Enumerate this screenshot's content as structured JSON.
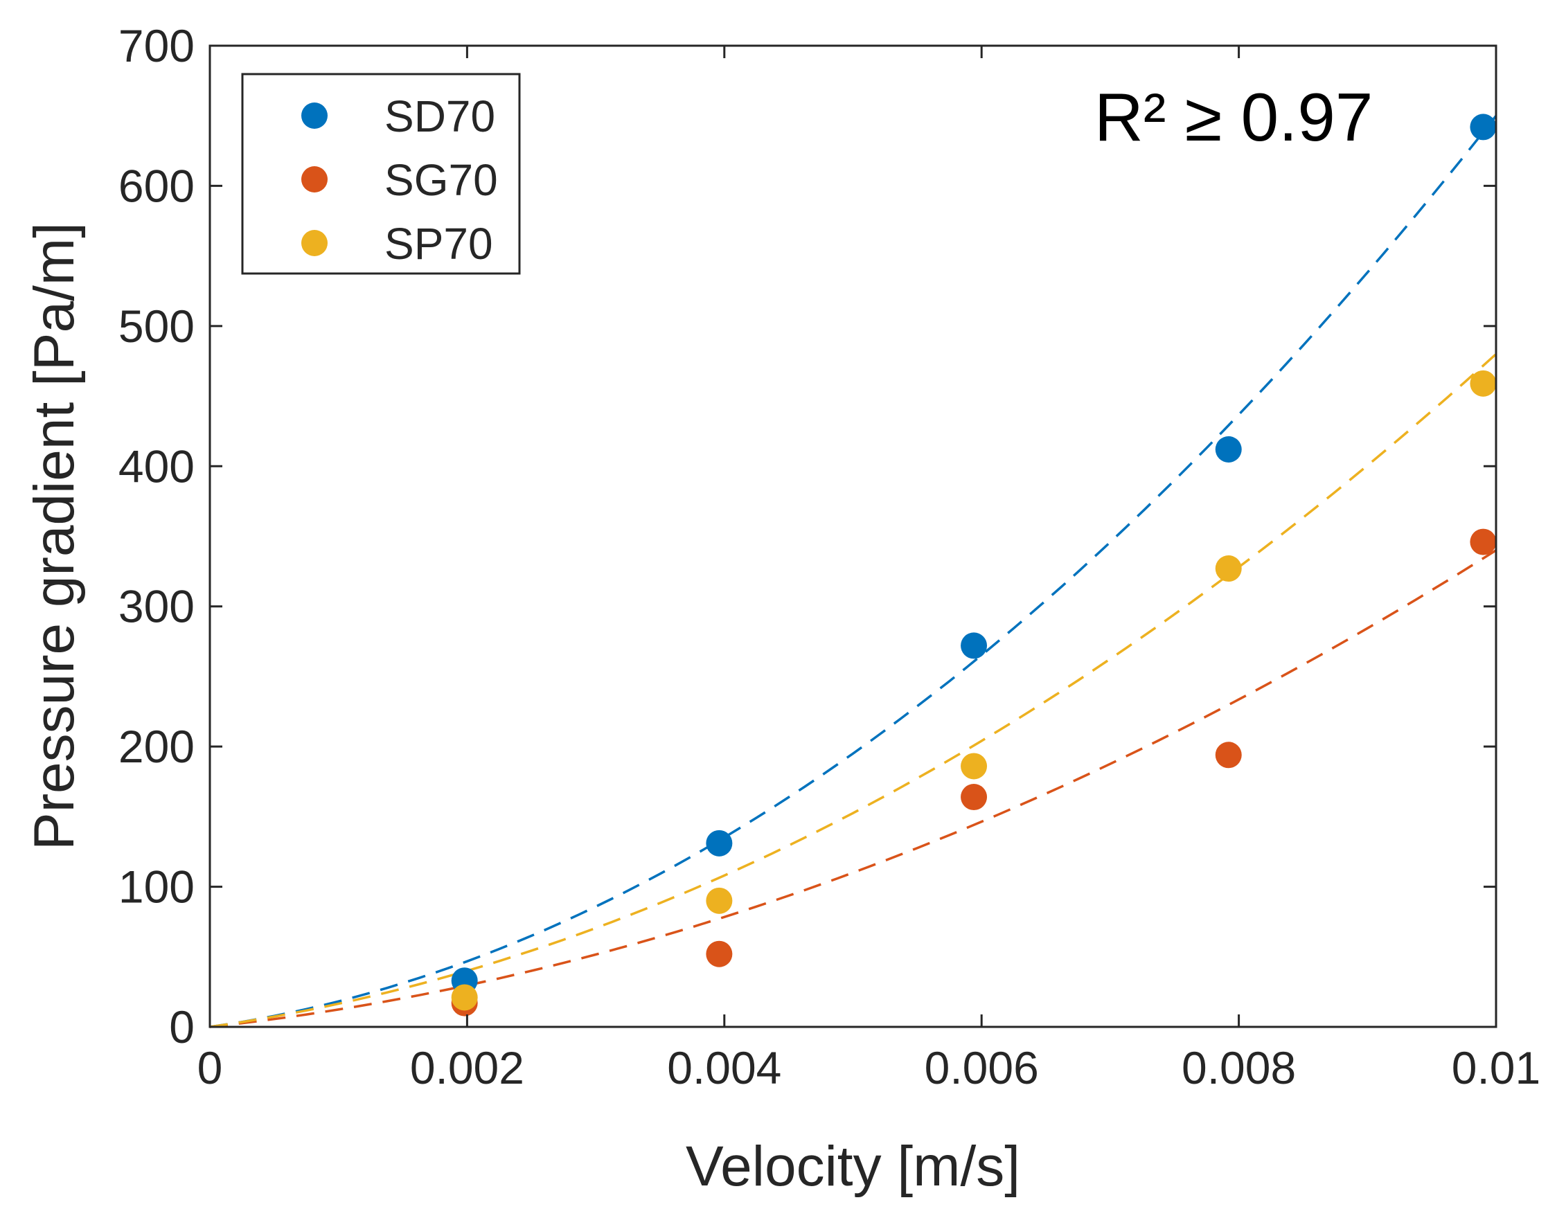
{
  "chart_data": {
    "type": "scatter",
    "title": "",
    "xlabel": "Velocity [m/s]",
    "ylabel": "Pressure gradient [Pa/m]",
    "xlim": [
      0,
      0.01
    ],
    "ylim": [
      0,
      700
    ],
    "xticks": [
      0,
      0.002,
      0.004,
      0.006,
      0.008,
      0.01
    ],
    "xtick_labels": [
      "0",
      "0.002",
      "0.004",
      "0.006",
      "0.008",
      "0.01"
    ],
    "yticks": [
      0,
      100,
      200,
      300,
      400,
      500,
      600,
      700
    ],
    "ytick_labels": [
      "0",
      "100",
      "200",
      "300",
      "400",
      "500",
      "600",
      "700"
    ],
    "grid": false,
    "legend_position": "top-left",
    "annotation": "R² ≥ 0.97",
    "series": [
      {
        "name": "SD70",
        "color": "#0072BD",
        "x": [
          0.00198,
          0.00396,
          0.00594,
          0.00792,
          0.0099
        ],
        "values": [
          33,
          131,
          272,
          412,
          642
        ],
        "fit": {
          "style": "dashed",
          "model": "quadratic",
          "a": 5200000,
          "b": 13000,
          "x_end": 0.01
        }
      },
      {
        "name": "SG70",
        "color": "#D95319",
        "x": [
          0.00198,
          0.00396,
          0.00594,
          0.00792,
          0.0099
        ],
        "values": [
          17,
          52,
          164,
          194,
          346
        ],
        "fit": {
          "style": "dashed",
          "model": "quadratic",
          "a": 2400000,
          "b": 10000,
          "x_end": 0.01
        }
      },
      {
        "name": "SP70",
        "color": "#EDB120",
        "x": [
          0.00198,
          0.00396,
          0.00594,
          0.00792,
          0.0099
        ],
        "values": [
          21,
          90,
          186,
          327,
          459
        ],
        "fit": {
          "style": "dashed",
          "model": "quadratic",
          "a": 3500000,
          "b": 13000,
          "x_end": 0.01
        }
      }
    ]
  }
}
